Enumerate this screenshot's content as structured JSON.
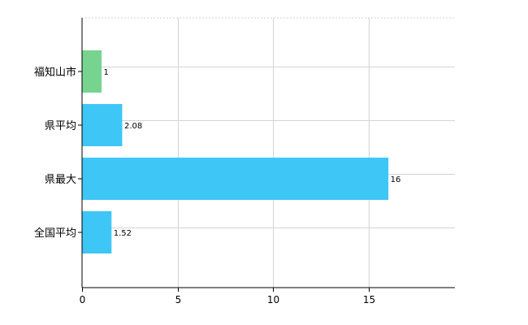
{
  "chart_data": {
    "type": "bar",
    "orientation": "horizontal",
    "categories": [
      "福知山市",
      "県平均",
      "県最大",
      "全国平均"
    ],
    "values": [
      1,
      2.08,
      16,
      1.52
    ],
    "value_labels": [
      "1",
      "2.08",
      "16",
      "1.52"
    ],
    "bar_colors": [
      "#77d48f",
      "#3ec6f7",
      "#3ec6f7",
      "#3ec6f7"
    ],
    "xlim": [
      0,
      19.5
    ],
    "xticks": [
      0,
      5,
      10,
      15
    ],
    "xtick_labels": [
      "0",
      "5",
      "10",
      "15"
    ],
    "grid": true,
    "legend": "none"
  }
}
